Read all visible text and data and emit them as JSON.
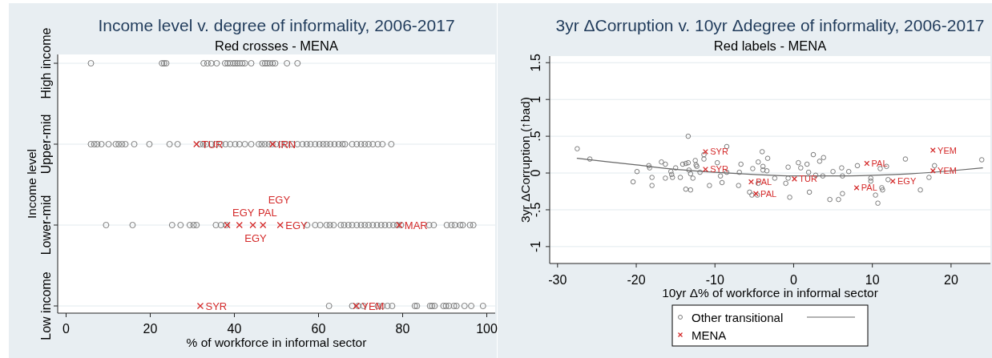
{
  "chart_data": [
    {
      "type": "scatter",
      "orientation": "horizontal",
      "title": "Income level v. degree of informality, 2006-2017",
      "subtitle": "Red crosses - MENA",
      "xlabel": "% of workforce in informal sector",
      "ylabel": "Income level",
      "categories": [
        "High income",
        "Upper-mid",
        "Lower-mid",
        "Low income"
      ],
      "xlim": [
        -2,
        102
      ],
      "xticks": [
        0,
        20,
        40,
        60,
        80,
        100
      ],
      "grid": "y",
      "series": [
        {
          "marker": "circle",
          "color": "#7a7a7a",
          "x": [
            "High income",
            "High income",
            "High income",
            "High income",
            "High income",
            "High income",
            "High income",
            "High income",
            "High income",
            "High income",
            "High income",
            "High income",
            "High income",
            "High income",
            "High income",
            "High income",
            "High income",
            "High income",
            "High income",
            "High income",
            "High income",
            "High income",
            "High income",
            "High income",
            "High income",
            "High income",
            "Upper-mid",
            "Upper-mid",
            "Upper-mid",
            "Upper-mid",
            "Upper-mid",
            "Upper-mid",
            "Upper-mid",
            "Upper-mid",
            "Upper-mid",
            "Upper-mid",
            "Upper-mid",
            "Upper-mid",
            "Upper-mid",
            "Upper-mid",
            "Upper-mid",
            "Upper-mid",
            "Upper-mid",
            "Upper-mid",
            "Upper-mid",
            "Upper-mid",
            "Upper-mid",
            "Upper-mid",
            "Upper-mid",
            "Upper-mid",
            "Upper-mid",
            "Upper-mid",
            "Upper-mid",
            "Upper-mid",
            "Upper-mid",
            "Upper-mid",
            "Upper-mid",
            "Upper-mid",
            "Upper-mid",
            "Upper-mid",
            "Upper-mid",
            "Upper-mid",
            "Upper-mid",
            "Upper-mid",
            "Upper-mid",
            "Upper-mid",
            "Upper-mid",
            "Upper-mid",
            "Upper-mid",
            "Upper-mid",
            "Upper-mid",
            "Upper-mid",
            "Upper-mid",
            "Upper-mid",
            "Upper-mid",
            "Upper-mid",
            "Upper-mid",
            "Upper-mid",
            "Upper-mid",
            "Upper-mid",
            "Upper-mid",
            "Upper-mid",
            "Lower-mid",
            "Lower-mid",
            "Lower-mid",
            "Lower-mid",
            "Lower-mid",
            "Lower-mid",
            "Lower-mid",
            "Lower-mid",
            "Lower-mid",
            "Lower-mid",
            "Lower-mid",
            "Lower-mid",
            "Lower-mid",
            "Lower-mid",
            "Lower-mid",
            "Lower-mid",
            "Lower-mid",
            "Lower-mid",
            "Lower-mid",
            "Lower-mid",
            "Lower-mid",
            "Lower-mid",
            "Lower-mid",
            "Lower-mid",
            "Lower-mid",
            "Lower-mid",
            "Lower-mid",
            "Lower-mid",
            "Lower-mid",
            "Lower-mid",
            "Lower-mid",
            "Lower-mid",
            "Lower-mid",
            "Lower-mid",
            "Lower-mid",
            "Lower-mid",
            "Lower-mid",
            "Lower-mid",
            "Lower-mid",
            "Lower-mid",
            "Lower-mid",
            "Low income",
            "Low income",
            "Low income",
            "Low income",
            "Low income",
            "Low income",
            "Low income",
            "Low income",
            "Low income",
            "Low income",
            "Low income",
            "Low income",
            "Low income",
            "Low income",
            "Low income",
            "Low income",
            "Low income",
            "Low income",
            "Low income",
            "Low income",
            "Low income"
          ],
          "values": [
            5.9,
            22.8,
            23.3,
            23.8,
            32.7,
            33.6,
            34.5,
            35.8,
            37.8,
            38.4,
            39.0,
            39.7,
            40.2,
            40.7,
            41.3,
            41.9,
            42.5,
            44.0,
            46.7,
            47.3,
            47.8,
            48.4,
            49.1,
            49.7,
            52.5,
            55.0,
            5.9,
            6.7,
            7.4,
            8.4,
            10.1,
            11.8,
            12.5,
            13.3,
            14.1,
            16.2,
            19.8,
            24.6,
            26.5,
            31.8,
            32.6,
            33.3,
            34.5,
            35.6,
            36.8,
            37.9,
            39.0,
            40.2,
            41.2,
            42.5,
            44.0,
            45.8,
            46.5,
            47.3,
            48.2,
            49.0,
            49.9,
            51.1,
            52.4,
            53.7,
            55.0,
            56.2,
            57.2,
            58.1,
            59.2,
            60.2,
            61.1,
            61.9,
            62.8,
            63.8,
            64.8,
            65.7,
            66.3,
            68.0,
            69.1,
            70.1,
            71.0,
            71.9,
            72.9,
            74.1,
            75.2,
            77.3,
            9.5,
            15.8,
            25.2,
            27.2,
            29.4,
            30.3,
            31.0,
            35.6,
            36.8,
            38.1,
            57.3,
            59.2,
            60.4,
            61.9,
            62.7,
            63.6,
            65.3,
            66.1,
            67.1,
            68.0,
            69.1,
            70.1,
            71.0,
            71.9,
            72.9,
            73.9,
            74.9,
            75.8,
            76.8,
            77.8,
            78.7,
            79.6,
            86.3,
            87.4,
            90.5,
            91.6,
            92.4,
            93.7,
            94.3,
            96.0,
            96.8,
            62.5,
            68.0,
            69.4,
            70.7,
            74.1,
            75.2,
            76.4,
            77.5,
            82.9,
            83.4,
            86.5,
            87.0,
            87.6,
            89.7,
            90.3,
            91.0,
            92.2,
            92.8,
            94.7,
            96.3,
            99.1
          ]
        },
        {
          "marker": "cross",
          "color": "#d42a2a",
          "x": [
            "Upper-mid",
            "Upper-mid",
            "Lower-mid",
            "Lower-mid",
            "Lower-mid",
            "Lower-mid",
            "Lower-mid",
            "Lower-mid",
            "Low income",
            "Low income"
          ],
          "values": [
            31.0,
            49.1,
            38.3,
            41.2,
            44.4,
            46.8,
            50.9,
            79.2,
            31.9,
            69.0
          ],
          "value_labels": [
            "TUR",
            "IRN",
            "EGY",
            "EGY",
            "PAL",
            "EGY",
            "EGY",
            "MAR",
            "SYR",
            "YEM"
          ]
        }
      ]
    },
    {
      "type": "scatter",
      "title": "3yr ΔCorruption v. 10yr Δdegree of informality, 2006-2017",
      "subtitle": "Red labels - MENA",
      "xlabel": "10yr Δ% of workforce in informal sector",
      "ylabel": "3yr ΔCorruption (↑bad)",
      "xlim": [
        -31,
        25
      ],
      "xticks": [
        -30,
        -20,
        -10,
        0,
        10,
        20
      ],
      "ylim": [
        -1.23,
        1.59
      ],
      "yticks": [
        -1,
        {
          "value": -0.5,
          "label": "-.5"
        },
        0,
        {
          "value": 0.5,
          "label": ".5"
        },
        1,
        1.5
      ],
      "grid": "y",
      "legend": "bottom",
      "series": [
        {
          "name": "Other transitional",
          "marker": "circle",
          "color": "#7a7a7a",
          "x": [
            -27.5,
            -25.9,
            -20.4,
            -19.9,
            -18.4,
            -18.3,
            -18.0,
            -18.0,
            -16.8,
            -16.3,
            -16.3,
            -15.6,
            -15.5,
            -15.4,
            -15.0,
            -14.4,
            -14.1,
            -13.7,
            -13.7,
            -13.4,
            -13.4,
            -13.3,
            -13.1,
            -13.1,
            -12.8,
            -12.5,
            -12.4,
            -12.3,
            -11.9,
            -11.4,
            -11.4,
            -10.7,
            -9.7,
            -9.3,
            -9.1,
            -8.5,
            -8.5,
            -7.0,
            -6.9,
            -6.7,
            -5.6,
            -5.3,
            -5.2,
            -4.6,
            -4.5,
            -4.0,
            -3.9,
            -3.9,
            -3.4,
            -3.3,
            -4.5,
            -2.4,
            -1.0,
            -0.7,
            -0.7,
            -0.5,
            0.6,
            0.9,
            1.7,
            1.9,
            2.0,
            2.5,
            2.8,
            3.3,
            3.8,
            3.7,
            4.6,
            5.0,
            5.7,
            6.1,
            6.2,
            6.2,
            7.0,
            8.1,
            9.8,
            9.8,
            10.4,
            10.7,
            11.0,
            11.2,
            11.3,
            11.8,
            12.0,
            14.2,
            16.1,
            17.2,
            17.9,
            23.9
          ],
          "values": [
            0.33,
            0.19,
            -0.12,
            0.02,
            0.1,
            0.07,
            -0.06,
            -0.17,
            0.15,
            0.12,
            -0.07,
            0.02,
            -0.02,
            -0.06,
            0.07,
            -0.06,
            0.12,
            0.13,
            -0.22,
            0.5,
            0.14,
            0.04,
            -0.23,
            -0.01,
            -0.07,
            0.17,
            0.11,
            0.09,
            0.01,
            0.25,
            0.19,
            -0.17,
            0.14,
            -0.04,
            -0.13,
            0.36,
            0.01,
            -0.17,
            0.01,
            0.12,
            -0.26,
            -0.3,
            0.06,
            -0.3,
            0.15,
            0.29,
            0.09,
            0.04,
            0.03,
            0.2,
            -0.14,
            -0.07,
            -0.14,
            0.08,
            -0.07,
            -0.33,
            0.14,
            0.07,
            0.12,
            0.01,
            -0.26,
            0.25,
            -0.03,
            0.16,
            0.21,
            -0.04,
            -0.36,
            0.02,
            -0.36,
            0.07,
            -0.28,
            -0.04,
            0.02,
            0.1,
            -0.07,
            -0.11,
            -0.3,
            -0.41,
            0.06,
            -0.2,
            -0.23,
            0.09,
            -0.09,
            0.19,
            -0.23,
            -0.06,
            0.1,
            0.18
          ]
        },
        {
          "type": "line",
          "color": "#666666",
          "x": [
            -27.5,
            -20,
            -15,
            -10,
            -5,
            0,
            5,
            10,
            15,
            20,
            24
          ],
          "values": [
            0.2,
            0.11,
            0.05,
            0.01,
            -0.02,
            -0.04,
            -0.04,
            -0.03,
            -0.01,
            0.03,
            0.07
          ]
        },
        {
          "name": "MENA",
          "marker": "cross",
          "color": "#d42a2a",
          "x": [
            -11.2,
            -11.2,
            -5.4,
            -4.8,
            0.1,
            9.3,
            8.0,
            12.6,
            17.7,
            17.7
          ],
          "values": [
            0.29,
            0.05,
            -0.12,
            -0.28,
            -0.08,
            0.13,
            -0.2,
            -0.11,
            0.31,
            0.03
          ],
          "value_labels": [
            "SYR",
            "SYR",
            "PAL",
            "PAL",
            "TUR",
            "PAL",
            "PAL",
            "EGY",
            "YEM",
            "YEM"
          ]
        }
      ]
    }
  ]
}
